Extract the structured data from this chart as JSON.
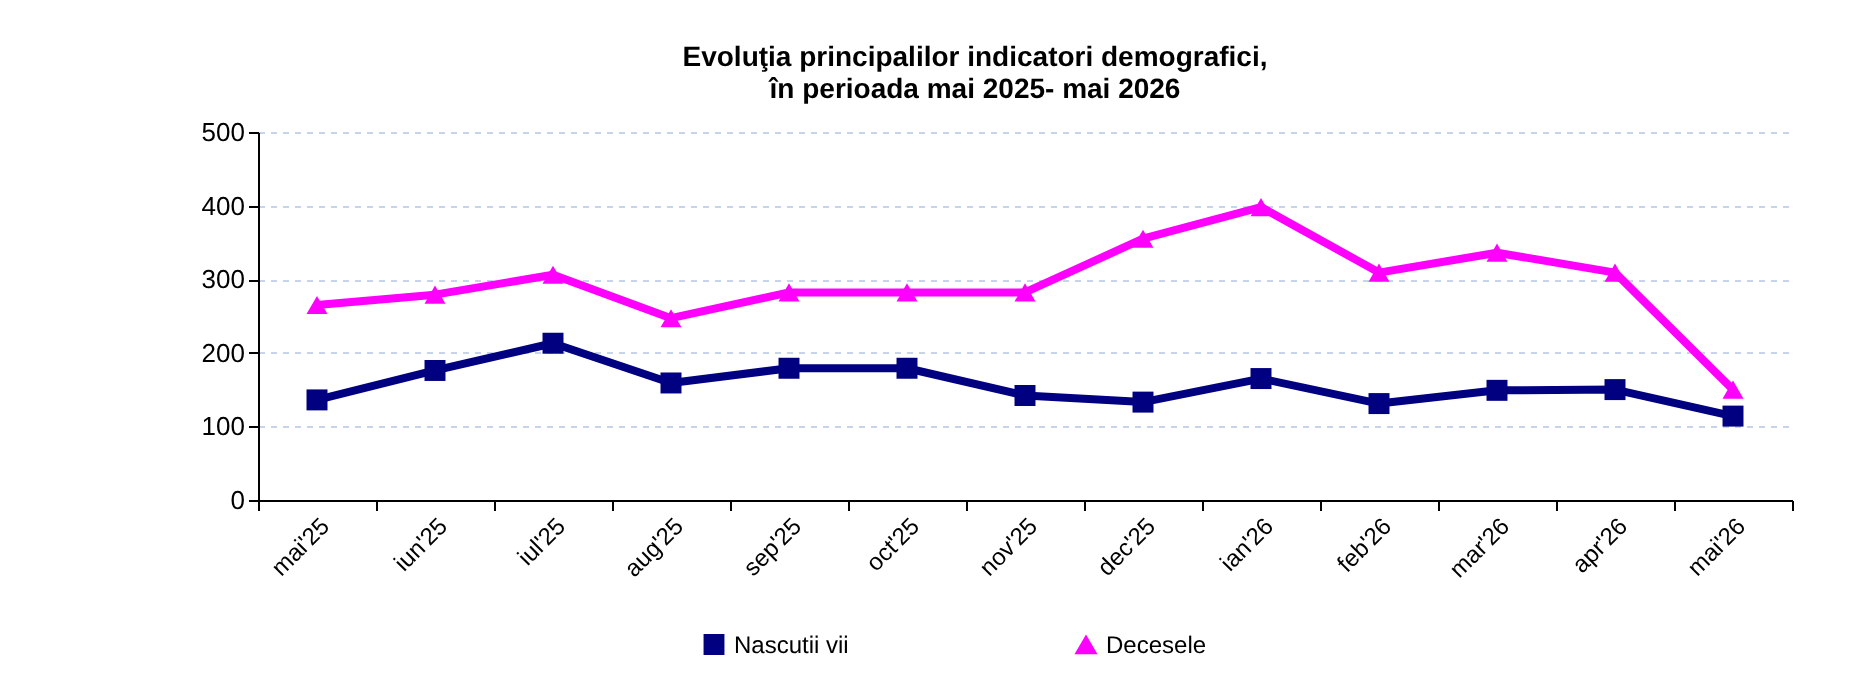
{
  "chart_data": {
    "type": "line",
    "title": "Evoluţia principalilor indicatori demografici,\nîn perioada mai 2025- mai 2026",
    "categories": [
      "mai'25",
      "iun'25",
      "iul'25",
      "aug'25",
      "sep'25",
      "oct'25",
      "nov'25",
      "dec'25",
      "ian'26",
      "feb'26",
      "mar'26",
      "apr'26",
      "mai'26"
    ],
    "series": [
      {
        "name": "Nascutii vii",
        "color": "#000080",
        "marker": "square",
        "values": [
          136,
          176,
          213,
          159,
          179,
          179,
          142,
          133,
          165,
          131,
          149,
          150,
          114
        ]
      },
      {
        "name": "Decesele",
        "color": "#ff00ff",
        "marker": "triangle",
        "values": [
          265,
          279,
          306,
          247,
          282,
          282,
          282,
          355,
          398,
          309,
          336,
          309,
          150
        ]
      }
    ],
    "ylim": [
      0,
      500
    ],
    "yticks": [
      0,
      100,
      200,
      300,
      400,
      500
    ],
    "grid": "y",
    "legend": "bottom"
  }
}
